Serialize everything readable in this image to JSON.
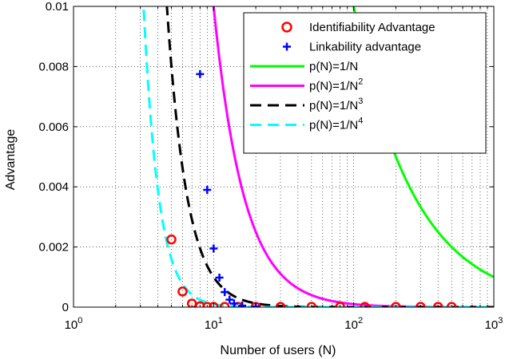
{
  "chart_data": {
    "type": "line",
    "xlabel": "Number of users (N)",
    "ylabel": "Advantage",
    "x_scale": "log",
    "xlim": [
      1,
      1000
    ],
    "ylim": [
      0,
      0.01
    ],
    "grid": "dotted",
    "legend_position": "top-right",
    "x_ticks": [
      {
        "value": 1,
        "base": "10",
        "exp": "0"
      },
      {
        "value": 10,
        "base": "10",
        "exp": "1"
      },
      {
        "value": 100,
        "base": "10",
        "exp": "2"
      },
      {
        "value": 1000,
        "base": "10",
        "exp": "3"
      }
    ],
    "y_ticks": [
      {
        "value": 0,
        "label": "0"
      },
      {
        "value": 0.002,
        "label": "0.002"
      },
      {
        "value": 0.004,
        "label": "0.004"
      },
      {
        "value": 0.006,
        "label": "0.006"
      },
      {
        "value": 0.008,
        "label": "0.008"
      },
      {
        "value": 0.01,
        "label": "0.01"
      }
    ],
    "series": [
      {
        "name": "Identifiability Advantage",
        "kind": "markers",
        "marker": "circle",
        "color": "#ff0000",
        "points": [
          [
            5,
            0.00225
          ],
          [
            6,
            0.00052
          ],
          [
            7,
            0.00012
          ],
          [
            8,
            3e-05
          ],
          [
            9,
            1e-05
          ],
          [
            10,
            1e-05
          ],
          [
            12,
            1e-05
          ],
          [
            15,
            1e-05
          ],
          [
            20,
            1e-05
          ],
          [
            30,
            1e-05
          ],
          [
            50,
            1e-05
          ],
          [
            80,
            1e-05
          ],
          [
            120,
            1e-05
          ],
          [
            200,
            1e-05
          ],
          [
            300,
            1e-05
          ],
          [
            400,
            1e-05
          ],
          [
            500,
            1e-05
          ]
        ]
      },
      {
        "name": "Linkability advantage",
        "kind": "markers",
        "marker": "plus",
        "color": "#0000ff",
        "points": [
          [
            8,
            0.00775
          ],
          [
            9,
            0.0039
          ],
          [
            10,
            0.00195
          ],
          [
            11,
            0.00098
          ],
          [
            12,
            0.0005
          ],
          [
            13,
            0.00025
          ],
          [
            14,
            0.00012
          ],
          [
            16,
            5e-05
          ],
          [
            20,
            2e-05
          ]
        ]
      },
      {
        "name": "p(N)=1/N",
        "name_base": "p(N)=1/N",
        "name_sup": "",
        "kind": "line",
        "exponent": 1,
        "color": "#00ff00",
        "dash": ""
      },
      {
        "name": "p(N)=1/N2",
        "name_base": "p(N)=1/N",
        "name_sup": "2",
        "kind": "line",
        "exponent": 2,
        "color": "#ff00ff",
        "dash": ""
      },
      {
        "name": "p(N)=1/N3",
        "name_base": "p(N)=1/N",
        "name_sup": "3",
        "kind": "line",
        "exponent": 3,
        "color": "#000000",
        "dash": "14,8"
      },
      {
        "name": "p(N)=1/N4",
        "name_base": "p(N)=1/N",
        "name_sup": "4",
        "kind": "line",
        "exponent": 4,
        "color": "#00ffff",
        "dash": "14,8"
      }
    ],
    "legend": [
      {
        "label": "Identifiability Advantage"
      },
      {
        "label": "Linkability advantage"
      },
      {
        "label": "p(N)=1/N",
        "sup": ""
      },
      {
        "label": "p(N)=1/N",
        "sup": "2"
      },
      {
        "label": "p(N)=1/N",
        "sup": "3"
      },
      {
        "label": "p(N)=1/N",
        "sup": "4"
      }
    ]
  }
}
